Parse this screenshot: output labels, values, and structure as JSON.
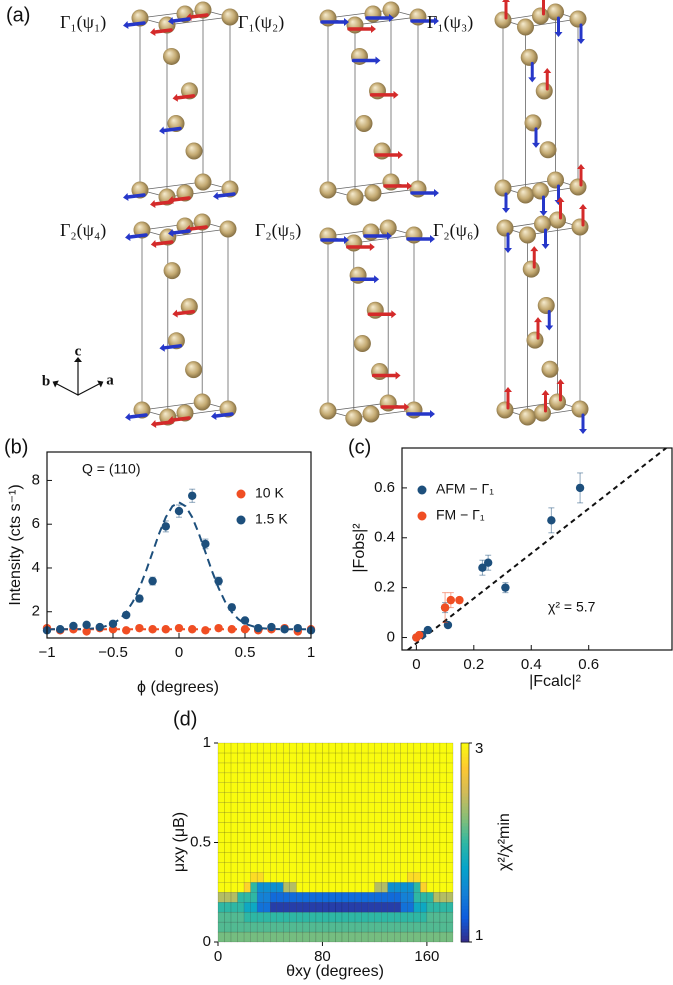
{
  "structures": {
    "label": "(a)",
    "titles": [
      "Γ₁(ψ₁)",
      "Γ₁(ψ₂)",
      "Γ₁(ψ₃)",
      "Γ₂(ψ₄)",
      "Γ₂(ψ₅)",
      "Γ₂(ψ₆)"
    ],
    "axes_labels": [
      "c",
      "b",
      "a"
    ]
  },
  "chart_data": [
    {
      "type": "scatter",
      "panel": "(b)",
      "annotation": "Q = (110)",
      "xlabel": "ϕ (degrees)",
      "ylabel": "Intensity (cts s⁻¹)",
      "xlim": [
        -1,
        1
      ],
      "ylim": [
        0.8,
        9.3
      ],
      "xticks": [
        {
          "value": -1,
          "label": "−1"
        },
        {
          "value": -0.5,
          "label": "−0.5"
        },
        0,
        0.5,
        1
      ],
      "yticks": [
        2,
        4,
        6,
        8
      ],
      "legend": "upper right",
      "x": [
        -1,
        -0.9,
        -0.8,
        -0.7,
        -0.6,
        -0.5,
        -0.4,
        -0.3,
        -0.2,
        -0.1,
        0,
        0.1,
        0.2,
        0.3,
        0.4,
        0.5,
        0.6,
        0.7,
        0.8,
        0.9,
        1
      ],
      "series": [
        {
          "name": "10 K",
          "color": "#f04e23",
          "values": [
            1.25,
            1.15,
            1.2,
            1.1,
            1.25,
            1.2,
            1.15,
            1.25,
            1.2,
            1.2,
            1.25,
            1.2,
            1.15,
            1.25,
            1.2,
            1.2,
            1.15,
            1.2,
            1.25,
            1.1,
            1.2
          ]
        },
        {
          "name": "1.5 K",
          "color": "#1d4f7c",
          "values": [
            1.15,
            1.2,
            1.35,
            1.4,
            1.3,
            1.45,
            1.85,
            2.6,
            3.4,
            5.9,
            6.6,
            7.3,
            5.1,
            3.4,
            2.2,
            1.6,
            1.25,
            1.3,
            1.2,
            1.25,
            1.15
          ],
          "errors": [
            0.1,
            0.1,
            0.1,
            0.1,
            0.1,
            0.1,
            0.12,
            0.15,
            0.18,
            0.25,
            0.28,
            0.3,
            0.22,
            0.18,
            0.14,
            0.12,
            0.1,
            0.1,
            0.1,
            0.1,
            0.1
          ]
        }
      ],
      "fits": [
        {
          "color": "#f04e23",
          "x": [
            -1,
            1
          ],
          "values": [
            1.2,
            1.2
          ]
        },
        {
          "color": "#1d4f7c",
          "x": [
            -1,
            -0.8,
            -0.7,
            -0.6,
            -0.5,
            -0.45,
            -0.4,
            -0.35,
            -0.3,
            -0.25,
            -0.2,
            -0.15,
            -0.1,
            -0.05,
            0,
            0.05,
            0.1,
            0.15,
            0.2,
            0.25,
            0.3,
            0.35,
            0.4,
            0.45,
            0.5,
            0.6,
            0.7,
            0.8,
            1
          ],
          "values": [
            1.2,
            1.2,
            1.21,
            1.26,
            1.45,
            1.66,
            1.98,
            2.45,
            3.08,
            3.86,
            4.72,
            5.58,
            6.32,
            6.82,
            7.0,
            6.82,
            6.32,
            5.58,
            4.72,
            3.86,
            3.08,
            2.45,
            1.98,
            1.66,
            1.45,
            1.26,
            1.21,
            1.2,
            1.2
          ]
        }
      ]
    },
    {
      "type": "scatter",
      "panel": "(c)",
      "annotation": "χ² = 5.7",
      "xlabel": "|Fcalc|²",
      "ylabel": "|Fobs|²",
      "xlim": [
        -0.05,
        0.89
      ],
      "ylim": [
        -0.05,
        0.76
      ],
      "xticks": [
        0,
        0.2,
        0.4,
        0.6
      ],
      "yticks": [
        0,
        0.2,
        0.4,
        0.6
      ],
      "legend": "upper left",
      "guide_line": {
        "x": [
          -0.03,
          0.87
        ],
        "values": [
          -0.05,
          0.76
        ]
      },
      "series": [
        {
          "name": "AFM − Γ₁",
          "color": "#1d4f7c",
          "x": [
            0.0,
            0.02,
            0.04,
            0.1,
            0.11,
            0.23,
            0.25,
            0.31,
            0.47,
            0.57
          ],
          "values": [
            0.0,
            0.01,
            0.03,
            0.12,
            0.05,
            0.28,
            0.3,
            0.2,
            0.47,
            0.6
          ],
          "errors": [
            0.01,
            0.01,
            0.01,
            0.02,
            0.01,
            0.03,
            0.03,
            0.02,
            0.05,
            0.06
          ]
        },
        {
          "name": "FM − Γ₁",
          "color": "#f04e23",
          "x": [
            0.0,
            0.01,
            0.1,
            0.12,
            0.15
          ],
          "values": [
            0.0,
            0.01,
            0.12,
            0.15,
            0.15
          ],
          "errors": [
            0.01,
            0.01,
            0.06,
            0.03,
            0.01
          ]
        }
      ]
    },
    {
      "type": "heatmap",
      "panel": "(d)",
      "xlabel": "θxy (degrees)",
      "ylabel": "μxy (μB)",
      "colorbar_label": "χ²/χ²min",
      "xlim": [
        0,
        180
      ],
      "ylim": [
        0,
        1
      ],
      "xticks": [
        0,
        80,
        160
      ],
      "yticks": [
        0,
        0.5,
        1
      ],
      "zlim": [
        1,
        3
      ],
      "zticks": [
        1,
        3
      ],
      "colormap": [
        "#352a87",
        "#0f5cdd",
        "#1481d6",
        "#06a4ca",
        "#2eb7a4",
        "#87bf77",
        "#d1bb59",
        "#fec832",
        "#f9fb0e"
      ],
      "z": [
        [
          2.2,
          2.2,
          2.2,
          2.2,
          2.2,
          2.2,
          2.2,
          2.2,
          2.2,
          2.2,
          2.2,
          2.2,
          2.2,
          2.2,
          2.2,
          2.2,
          2.2,
          2.2,
          2.2,
          2.2,
          2.2,
          2.2,
          2.2,
          2.2,
          2.2,
          2.2,
          2.2,
          2.2,
          2.2,
          2.2,
          2.2,
          2.2,
          2.2,
          2.2,
          2.2,
          2.2
        ],
        [
          2.1,
          2.1,
          2.1,
          2.1,
          2.1,
          2.1,
          2.1,
          2.1,
          2.1,
          2.1,
          2.1,
          2.1,
          2.1,
          2.1,
          2.1,
          2.1,
          2.1,
          2.1,
          2.1,
          2.1,
          2.1,
          2.1,
          2.1,
          2.1,
          2.1,
          2.1,
          2.1,
          2.1,
          2.1,
          2.1,
          2.1,
          2.1,
          2.1,
          2.1,
          2.1,
          2.1
        ],
        [
          2.1,
          2.1,
          2.1,
          2.1,
          2.0,
          2.0,
          2.0,
          2.0,
          2.0,
          2.0,
          2.0,
          2.0,
          2.0,
          2.0,
          2.0,
          2.0,
          2.0,
          2.0,
          2.0,
          2.0,
          2.0,
          2.0,
          2.0,
          2.0,
          2.0,
          2.0,
          2.0,
          2.0,
          2.0,
          2.0,
          2.0,
          2.0,
          2.1,
          2.1,
          2.1,
          2.1
        ],
        [
          2.0,
          2.0,
          2.0,
          2.0,
          1.8,
          1.8,
          1.4,
          1.4,
          1.1,
          1.1,
          1.1,
          1.1,
          1.1,
          1.1,
          1.1,
          1.1,
          1.1,
          1.1,
          1.1,
          1.1,
          1.1,
          1.1,
          1.1,
          1.1,
          1.1,
          1.1,
          1.1,
          1.1,
          1.4,
          1.4,
          1.8,
          1.8,
          2.0,
          2.0,
          2.0,
          2.0
        ],
        [
          2.4,
          2.4,
          2.4,
          2.0,
          2.0,
          2.0,
          1.5,
          1.5,
          1.35,
          1.35,
          1.35,
          1.35,
          1.35,
          1.35,
          1.35,
          1.35,
          1.35,
          1.35,
          1.35,
          1.35,
          1.35,
          1.35,
          1.35,
          1.35,
          1.35,
          1.35,
          1.35,
          1.35,
          1.5,
          1.5,
          2.0,
          2.0,
          2.0,
          2.4,
          2.4,
          2.4
        ],
        [
          3,
          3,
          3,
          3,
          2.8,
          2.0,
          1.6,
          1.6,
          1.6,
          1.6,
          2.4,
          2.4,
          3,
          3,
          3,
          3,
          3,
          3,
          3,
          3,
          3,
          3,
          3,
          3,
          2.4,
          2.4,
          1.6,
          1.6,
          1.6,
          1.6,
          2.0,
          2.8,
          3,
          3,
          3,
          3
        ],
        [
          3,
          3,
          3,
          3,
          3,
          2.85,
          2.85,
          3,
          3,
          3,
          3,
          3,
          3,
          3,
          3,
          3,
          3,
          3,
          3,
          3,
          3,
          3,
          3,
          3,
          3,
          3,
          3,
          3,
          3,
          2.85,
          2.85,
          3,
          3,
          3,
          3,
          3
        ],
        [
          3,
          3,
          3,
          3,
          3,
          3,
          3,
          3,
          3,
          3,
          3,
          3,
          3,
          3,
          3,
          3,
          3,
          3,
          3,
          3,
          3,
          3,
          3,
          3,
          3,
          3,
          3,
          3,
          3,
          3,
          3,
          3,
          3,
          3,
          3,
          3
        ],
        [
          3,
          3,
          3,
          3,
          3,
          3,
          3,
          3,
          3,
          3,
          3,
          3,
          3,
          3,
          3,
          3,
          3,
          3,
          3,
          3,
          3,
          3,
          3,
          3,
          3,
          3,
          3,
          3,
          3,
          3,
          3,
          3,
          3,
          3,
          3,
          3
        ],
        [
          3,
          3,
          3,
          3,
          3,
          3,
          3,
          3,
          3,
          3,
          3,
          3,
          3,
          3,
          3,
          3,
          3,
          3,
          3,
          3,
          3,
          3,
          3,
          3,
          3,
          3,
          3,
          3,
          3,
          3,
          3,
          3,
          3,
          3,
          3,
          3
        ],
        [
          3,
          3,
          3,
          3,
          3,
          3,
          3,
          3,
          3,
          3,
          3,
          3,
          3,
          3,
          3,
          3,
          3,
          3,
          3,
          3,
          3,
          3,
          3,
          3,
          3,
          3,
          3,
          3,
          3,
          3,
          3,
          3,
          3,
          3,
          3,
          3
        ],
        [
          3,
          3,
          3,
          3,
          3,
          3,
          3,
          3,
          3,
          3,
          3,
          3,
          3,
          3,
          3,
          3,
          3,
          3,
          3,
          3,
          3,
          3,
          3,
          3,
          3,
          3,
          3,
          3,
          3,
          3,
          3,
          3,
          3,
          3,
          3,
          3
        ],
        [
          3,
          3,
          3,
          3,
          3,
          3,
          3,
          3,
          3,
          3,
          3,
          3,
          3,
          3,
          3,
          3,
          3,
          3,
          3,
          3,
          3,
          3,
          3,
          3,
          3,
          3,
          3,
          3,
          3,
          3,
          3,
          3,
          3,
          3,
          3,
          3
        ],
        [
          3,
          3,
          3,
          3,
          3,
          3,
          3,
          3,
          3,
          3,
          3,
          3,
          3,
          3,
          3,
          3,
          3,
          3,
          3,
          3,
          3,
          3,
          3,
          3,
          3,
          3,
          3,
          3,
          3,
          3,
          3,
          3,
          3,
          3,
          3,
          3
        ],
        [
          3,
          3,
          3,
          3,
          3,
          3,
          3,
          3,
          3,
          3,
          3,
          3,
          3,
          3,
          3,
          3,
          3,
          3,
          3,
          3,
          3,
          3,
          3,
          3,
          3,
          3,
          3,
          3,
          3,
          3,
          3,
          3,
          3,
          3,
          3,
          3
        ],
        [
          3,
          3,
          3,
          3,
          3,
          3,
          3,
          3,
          3,
          3,
          3,
          3,
          3,
          3,
          3,
          3,
          3,
          3,
          3,
          3,
          3,
          3,
          3,
          3,
          3,
          3,
          3,
          3,
          3,
          3,
          3,
          3,
          3,
          3,
          3,
          3
        ],
        [
          3,
          3,
          3,
          3,
          3,
          3,
          3,
          3,
          3,
          3,
          3,
          3,
          3,
          3,
          3,
          3,
          3,
          3,
          3,
          3,
          3,
          3,
          3,
          3,
          3,
          3,
          3,
          3,
          3,
          3,
          3,
          3,
          3,
          3,
          3,
          3
        ],
        [
          3,
          3,
          3,
          3,
          3,
          3,
          3,
          3,
          3,
          3,
          3,
          3,
          3,
          3,
          3,
          3,
          3,
          3,
          3,
          3,
          3,
          3,
          3,
          3,
          3,
          3,
          3,
          3,
          3,
          3,
          3,
          3,
          3,
          3,
          3,
          3
        ],
        [
          3,
          3,
          3,
          3,
          3,
          3,
          3,
          3,
          3,
          3,
          3,
          3,
          3,
          3,
          3,
          3,
          3,
          3,
          3,
          3,
          3,
          3,
          3,
          3,
          3,
          3,
          3,
          3,
          3,
          3,
          3,
          3,
          3,
          3,
          3,
          3
        ],
        [
          3,
          3,
          3,
          3,
          3,
          3,
          3,
          3,
          3,
          3,
          3,
          3,
          3,
          3,
          3,
          3,
          3,
          3,
          3,
          3,
          3,
          3,
          3,
          3,
          3,
          3,
          3,
          3,
          3,
          3,
          3,
          3,
          3,
          3,
          3,
          3
        ]
      ]
    }
  ]
}
